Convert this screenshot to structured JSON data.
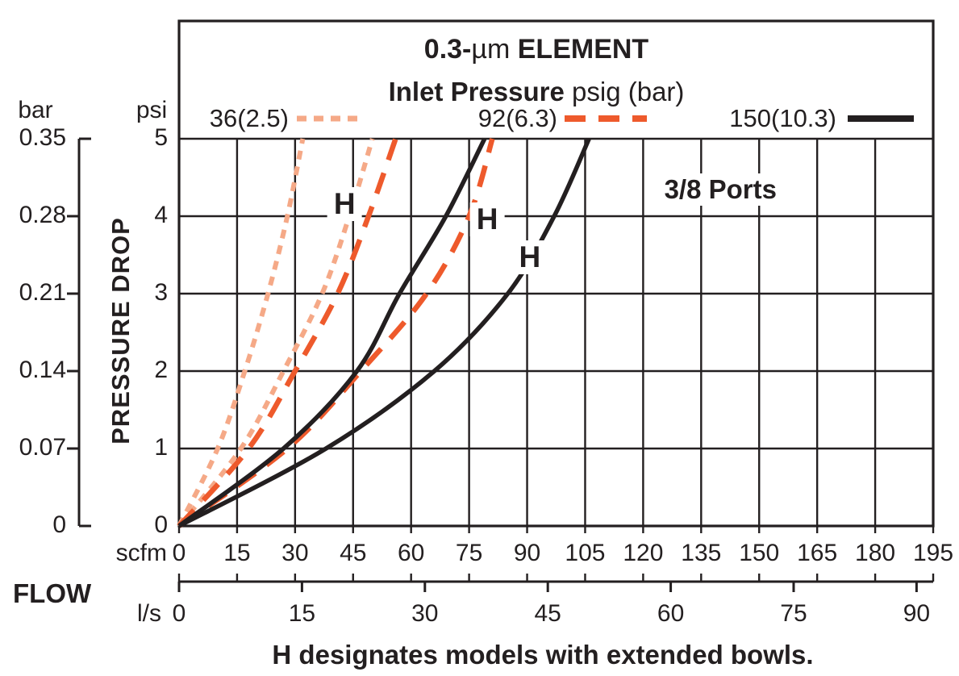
{
  "figure": {
    "title_line1": {
      "bold_prefix": "0.3-",
      "regular": "µm",
      "bold_suffix": " ELEMENT"
    },
    "title_line2": {
      "bold": "Inlet Pressure",
      "regular": " psig (bar)"
    },
    "pressure_drop_label": "PRESSURE DROP",
    "flow_label": "FLOW",
    "caption": "H designates models with extended bowls.",
    "units": {
      "bar": "bar",
      "psi": "psi",
      "scfm": "scfm",
      "ls": "l/s"
    }
  },
  "legend": {
    "items": [
      {
        "label": "36(2.5)",
        "color": "#F5A987",
        "pattern": "dotted"
      },
      {
        "label": "92(6.3)",
        "color": "#EE5A2C",
        "pattern": "dashed"
      },
      {
        "label": "150(10.3)",
        "color": "#231F20",
        "pattern": "solid"
      }
    ]
  },
  "chart_data": {
    "type": "line",
    "title": "0.3-µm ELEMENT",
    "subtitle": "Inlet Pressure psig (bar)",
    "grid": true,
    "x_axis": {
      "primary_label": "scfm",
      "primary_ticks": [
        0,
        15,
        30,
        45,
        60,
        75,
        90,
        105,
        120,
        135,
        150,
        165,
        180,
        195
      ],
      "range_scfm": [
        0,
        195
      ],
      "secondary_label": "l/s",
      "secondary_ticks": [
        0,
        15,
        30,
        45,
        60,
        75,
        90
      ],
      "range_ls": [
        0,
        92
      ]
    },
    "y_axis": {
      "label": "PRESSURE DROP",
      "left_unit": "bar",
      "left_ticks": [
        "0.35",
        "0.28",
        "0.21",
        "0.14",
        "0.07",
        "0"
      ],
      "right_unit": "psi",
      "right_ticks": [
        "5",
        "4",
        "3",
        "2",
        "1",
        "0"
      ],
      "range_psi": [
        0,
        5
      ]
    },
    "psi_levels": [
      0,
      1,
      2,
      3,
      4,
      5
    ],
    "series": [
      {
        "name": "36(2.5)",
        "inlet_pressure_psig": 36,
        "inlet_pressure_bar": 2.5,
        "extended_bowl": false,
        "pattern": "dotted",
        "color": "#F5A987",
        "scfm_at_psi": [
          0,
          10,
          17,
          23,
          28,
          32
        ]
      },
      {
        "name": "36(2.5) H",
        "inlet_pressure_psig": 36,
        "inlet_pressure_bar": 2.5,
        "extended_bowl": true,
        "pattern": "dotted",
        "color": "#F5A987",
        "scfm_at_psi": [
          0,
          16,
          27,
          37,
          44,
          50
        ]
      },
      {
        "name": "92(6.3)",
        "inlet_pressure_psig": 92,
        "inlet_pressure_bar": 6.3,
        "extended_bowl": false,
        "pattern": "dashed",
        "color": "#EE5A2C",
        "scfm_at_psi": [
          0,
          18,
          30,
          41,
          49,
          56
        ]
      },
      {
        "name": "92(6.3) H",
        "inlet_pressure_psig": 92,
        "inlet_pressure_bar": 6.3,
        "extended_bowl": true,
        "pattern": "dashed",
        "color": "#EE5A2C",
        "scfm_at_psi": [
          0,
          28,
          47,
          64,
          75,
          81
        ]
      },
      {
        "name": "150(10.3)",
        "inlet_pressure_psig": 150,
        "inlet_pressure_bar": 10.3,
        "extended_bowl": false,
        "pattern": "solid",
        "color": "#231F20",
        "scfm_at_psi": [
          0,
          27,
          46,
          57,
          69,
          79
        ]
      },
      {
        "name": "150(10.3) H",
        "inlet_pressure_psig": 150,
        "inlet_pressure_bar": 10.3,
        "extended_bowl": true,
        "pattern": "solid",
        "color": "#231F20",
        "scfm_at_psi": [
          0,
          38,
          66,
          85,
          97,
          106
        ]
      }
    ],
    "annotations": [
      {
        "text": "3/8 Ports",
        "kind": "ports",
        "scfm": 140,
        "psi": 4.34
      },
      {
        "text": "H",
        "kind": "h",
        "series": "36(2.5) H",
        "scfm": 42.8,
        "psi": 4.16
      },
      {
        "text": "H",
        "kind": "h",
        "series": "92(6.3) H",
        "scfm": 79.7,
        "psi": 3.96
      },
      {
        "text": "H",
        "kind": "h",
        "series": "150(10.3) H",
        "scfm": 90.7,
        "psi": 3.47
      }
    ]
  }
}
